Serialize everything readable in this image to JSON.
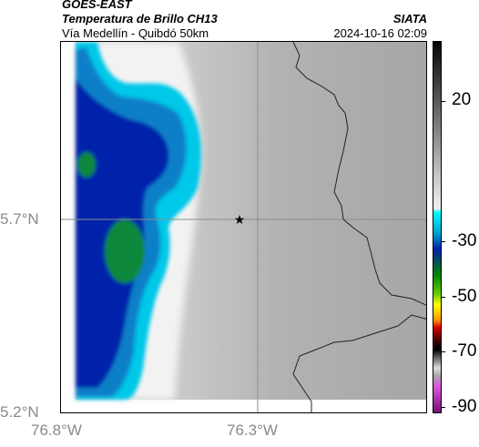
{
  "header": {
    "satellite": "GOES-EAST",
    "product": "Temperatura de Brillo CH13",
    "route": "Vía Medellín - Quibdó 50km",
    "source": "SIATA",
    "datetime": "2024-10-16 02:09"
  },
  "map": {
    "marker": "star-icon",
    "lat_labels": [
      "5.7°N",
      "5.2°N"
    ],
    "lon_labels": [
      "76.8°W",
      "76.3°W"
    ],
    "colors": {
      "cold_cloud": "#0022aa",
      "cyan": "#00c8e8",
      "green": "#11883a",
      "land": "#b4b4b4"
    }
  },
  "colorbar": {
    "labels": [
      "20",
      "-30",
      "-50",
      "-70",
      "-90"
    ]
  }
}
